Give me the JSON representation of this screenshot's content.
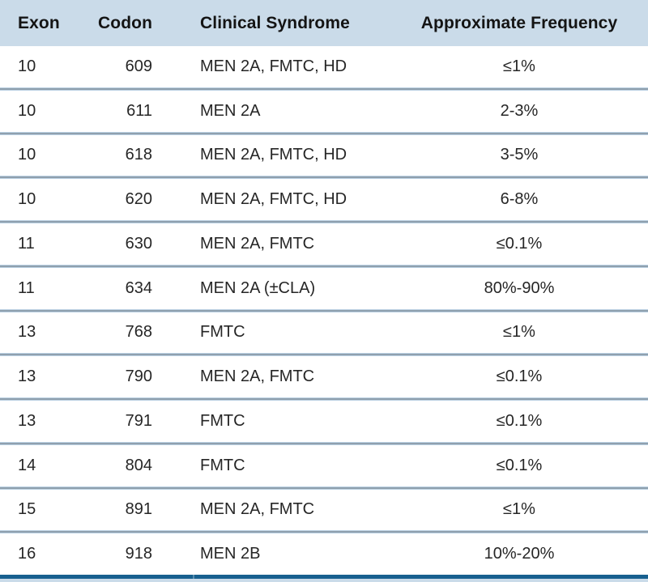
{
  "table": {
    "columns": [
      "Exon",
      "Codon",
      "Clinical Syndrome",
      "Approximate Frequency"
    ],
    "rows": [
      {
        "exon": "10",
        "codon": "609",
        "syndrome": "MEN 2A, FMTC, HD",
        "frequency": "≤1%"
      },
      {
        "exon": "10",
        "codon": "611",
        "syndrome": "MEN 2A",
        "frequency": "2-3%"
      },
      {
        "exon": "10",
        "codon": "618",
        "syndrome": "MEN 2A, FMTC, HD",
        "frequency": "3-5%"
      },
      {
        "exon": "10",
        "codon": "620",
        "syndrome": "MEN 2A, FMTC, HD",
        "frequency": "6-8%"
      },
      {
        "exon": "11",
        "codon": "630",
        "syndrome": "MEN 2A, FMTC",
        "frequency": "≤0.1%"
      },
      {
        "exon": "11",
        "codon": "634",
        "syndrome": "MEN 2A (±CLA)",
        "frequency": "80%-90%"
      },
      {
        "exon": "13",
        "codon": "768",
        "syndrome": "FMTC",
        "frequency": "≤1%"
      },
      {
        "exon": "13",
        "codon": "790",
        "syndrome": "MEN 2A, FMTC",
        "frequency": "≤0.1%"
      },
      {
        "exon": "13",
        "codon": "791",
        "syndrome": "FMTC",
        "frequency": "≤0.1%"
      },
      {
        "exon": "14",
        "codon": "804",
        "syndrome": "FMTC",
        "frequency": "≤0.1%"
      },
      {
        "exon": "15",
        "codon": "891",
        "syndrome": "MEN 2A, FMTC",
        "frequency": "≤1%"
      },
      {
        "exon": "16",
        "codon": "918",
        "syndrome": "MEN 2B",
        "frequency": "10%-20%"
      }
    ]
  },
  "colors": {
    "header_background": "#cadbe9",
    "row_divider_dark": "#8fa0ae",
    "row_divider_light": "#bad0e2",
    "bottom_bar": "#17608f",
    "footer_background": "#cadbe9",
    "text": "#262626"
  }
}
